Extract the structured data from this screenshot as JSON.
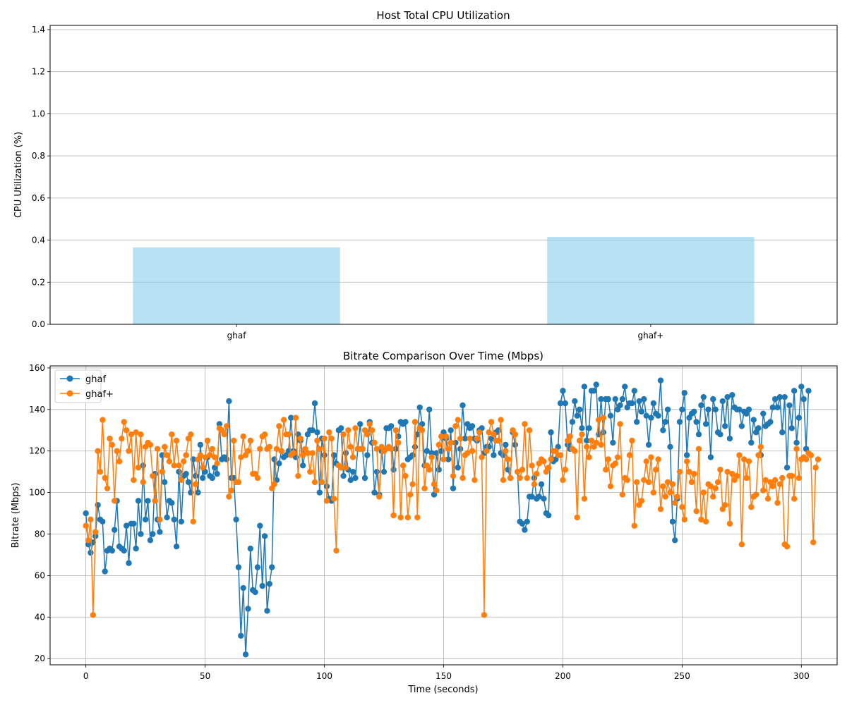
{
  "chart_data": [
    {
      "type": "bar",
      "title": "Host Total CPU Utilization",
      "xlabel": "",
      "ylabel": "CPU Utilization (%)",
      "categories": [
        "ghaf",
        "ghaf+"
      ],
      "values": [
        0.365,
        0.415
      ],
      "ylim": [
        0,
        1.42
      ],
      "yticks": [
        0.0,
        0.2,
        0.4,
        0.6,
        0.8,
        1.0,
        1.2,
        1.4
      ],
      "ytick_labels": [
        "0.0",
        "0.2",
        "0.4",
        "0.6",
        "0.8",
        "1.0",
        "1.2",
        "1.4"
      ],
      "grid": "y",
      "bar_color": "#87ceeb",
      "bar_alpha": 0.6
    },
    {
      "type": "line",
      "title": "Bitrate Comparison Over Time (Mbps)",
      "xlabel": "Time (seconds)",
      "ylabel": "Bitrate (Mbps)",
      "xlim": [
        -15,
        315
      ],
      "ylim": [
        17,
        161
      ],
      "xticks": [
        0,
        50,
        100,
        150,
        200,
        250,
        300
      ],
      "xtick_labels": [
        "0",
        "50",
        "100",
        "150",
        "200",
        "250",
        "300"
      ],
      "yticks": [
        20,
        40,
        60,
        80,
        100,
        120,
        140,
        160
      ],
      "ytick_labels": [
        "20",
        "40",
        "60",
        "80",
        "100",
        "120",
        "140",
        "160"
      ],
      "grid": "both",
      "legend": "top-left",
      "markers": "circle",
      "series": [
        {
          "name": "ghaf",
          "color": "#1f77b4",
          "values": [
            90,
            75,
            71,
            76,
            79,
            94,
            87,
            86,
            62,
            72,
            73,
            72,
            82,
            96,
            74,
            73,
            72,
            84,
            66,
            85,
            85,
            73,
            96,
            80,
            113,
            87,
            96,
            77,
            80,
            109,
            87,
            81,
            118,
            105,
            88,
            96,
            95,
            87,
            74,
            110,
            86,
            108,
            109,
            105,
            100,
            116,
            108,
            100,
            123,
            107,
            110,
            117,
            108,
            107,
            112,
            109,
            133,
            116,
            117,
            116,
            144,
            107,
            107,
            87,
            64,
            31,
            54,
            22,
            44,
            73,
            53,
            52,
            64,
            84,
            55,
            79,
            43,
            56,
            64,
            116,
            106,
            114,
            120,
            117,
            118,
            120,
            136,
            120,
            117,
            128,
            125,
            113,
            120,
            128,
            130,
            130,
            143,
            129,
            100,
            126,
            118,
            103,
            97,
            96,
            118,
            114,
            130,
            131,
            108,
            119,
            111,
            106,
            110,
            107,
            121,
            133,
            121,
            107,
            118,
            134,
            124,
            100,
            110,
            99,
            120,
            110,
            131,
            131,
            132,
            111,
            121,
            127,
            134,
            133,
            134,
            116,
            117,
            118,
            122,
            128,
            141,
            133,
            113,
            120,
            140,
            119,
            99,
            119,
            111,
            120,
            129,
            126,
            116,
            130,
            102,
            124,
            112,
            121,
            142,
            126,
            133,
            131,
            132,
            126,
            125,
            130,
            131,
            119,
            122,
            122,
            126,
            118,
            129,
            130,
            119,
            118,
            123,
            111,
            107,
            129,
            123,
            110,
            86,
            85,
            82,
            86,
            98,
            98,
            107,
            97,
            98,
            104,
            97,
            90,
            89,
            129,
            115,
            116,
            122,
            143,
            149,
            143,
            123,
            121,
            134,
            144,
            137,
            140,
            131,
            151,
            125,
            131,
            149,
            149,
            152,
            128,
            145,
            129,
            145,
            145,
            137,
            124,
            145,
            140,
            142,
            145,
            151,
            141,
            143,
            143,
            149,
            134,
            144,
            139,
            145,
            137,
            123,
            136,
            143,
            138,
            137,
            154,
            130,
            134,
            140,
            122,
            86,
            77,
            97,
            134,
            140,
            148,
            118,
            136,
            138,
            139,
            134,
            128,
            142,
            146,
            133,
            140,
            117,
            145,
            140,
            129,
            128,
            144,
            132,
            146,
            126,
            147,
            141,
            140,
            140,
            132,
            139,
            138,
            140,
            124,
            135,
            129,
            131,
            118,
            138,
            132,
            133,
            134,
            141,
            145,
            141,
            146,
            129,
            146,
            112,
            142,
            131,
            149,
            124,
            136,
            151,
            145,
            121,
            149
          ]
        },
        {
          "name": "ghaf+",
          "color": "#ff7f0e",
          "values": [
            84,
            77,
            87,
            41,
            81,
            120,
            110,
            135,
            107,
            102,
            126,
            123,
            96,
            120,
            115,
            126,
            134,
            130,
            120,
            128,
            106,
            129,
            112,
            128,
            105,
            122,
            124,
            123,
            108,
            96,
            121,
            87,
            110,
            122,
            118,
            115,
            128,
            113,
            125,
            113,
            106,
            115,
            118,
            126,
            128,
            86,
            104,
            116,
            118,
            112,
            117,
            125,
            118,
            121,
            117,
            114,
            131,
            130,
            128,
            132,
            98,
            101,
            125,
            105,
            105,
            117,
            127,
            118,
            120,
            125,
            109,
            109,
            107,
            121,
            127,
            128,
            121,
            122,
            102,
            104,
            121,
            132,
            120,
            135,
            128,
            128,
            118,
            119,
            136,
            108,
            126,
            118,
            121,
            119,
            110,
            119,
            105,
            125,
            121,
            105,
            126,
            96,
            129,
            126,
            97,
            72,
            113,
            112,
            128,
            112,
            130,
            122,
            117,
            131,
            121,
            121,
            121,
            130,
            128,
            133,
            130,
            124,
            121,
            98,
            122,
            120,
            121,
            122,
            121,
            89,
            130,
            124,
            88,
            113,
            108,
            88,
            99,
            104,
            134,
            88,
            131,
            130,
            102,
            113,
            111,
            117,
            104,
            101,
            123,
            127,
            116,
            127,
            121,
            124,
            108,
            132,
            135,
            126,
            107,
            118,
            119,
            126,
            120,
            106,
            126,
            129,
            117,
            41,
            120,
            129,
            134,
            128,
            125,
            125,
            135,
            106,
            120,
            116,
            107,
            130,
            128,
            110,
            107,
            111,
            133,
            107,
            130,
            113,
            104,
            109,
            114,
            116,
            115,
            110,
            112,
            116,
            120,
            120,
            118,
            118,
            106,
            111,
            125,
            127,
            121,
            120,
            88,
            125,
            128,
            97,
            122,
            117,
            125,
            122,
            124,
            135,
            123,
            136,
            111,
            116,
            103,
            113,
            114,
            117,
            133,
            99,
            107,
            106,
            118,
            125,
            84,
            105,
            94,
            96,
            106,
            115,
            105,
            117,
            100,
            111,
            116,
            92,
            103,
            98,
            105,
            100,
            104,
            95,
            98,
            110,
            93,
            87,
            115,
            110,
            105,
            109,
            91,
            121,
            87,
            100,
            86,
            104,
            103,
            98,
            102,
            105,
            111,
            92,
            94,
            110,
            85,
            109,
            106,
            108,
            118,
            75,
            116,
            107,
            115,
            93,
            98,
            99,
            118,
            122,
            101,
            106,
            97,
            105,
            103,
            106,
            95,
            104,
            107,
            75,
            74,
            108,
            108,
            97,
            121,
            107,
            116,
            117,
            116,
            119,
            118,
            76,
            112,
            116
          ]
        }
      ]
    }
  ]
}
